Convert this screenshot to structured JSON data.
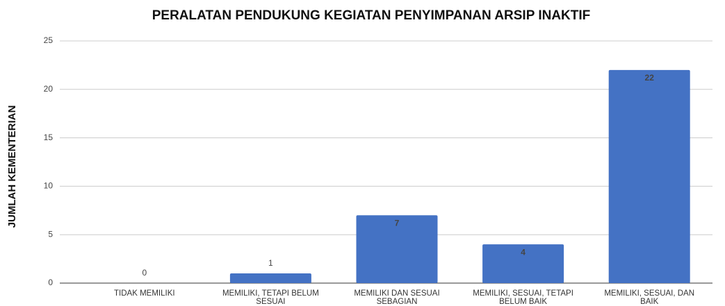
{
  "chart_data": {
    "type": "bar",
    "title": "PERALATAN PENDUKUNG KEGIATAN PENYIMPANAN ARSIP INAKTIF",
    "y_label": "JUMLAH KEMENTERIAN",
    "categories": [
      "TIDAK MEMILIKI",
      "MEMILIKI, TETAPI BELUM SESUAI",
      "MEMILIKI DAN SESUAI SEBAGIAN",
      "MEMILIKI, SESUAI, TETAPI BELUM BAIK",
      "MEMILIKI, SESUAI, DAN BAIK"
    ],
    "values": [
      0,
      1,
      7,
      4,
      22
    ],
    "color": "#4472c4",
    "zero_label_color": "#cc0000",
    "ylim": [
      0,
      25
    ],
    "yticks": [
      0,
      5,
      10,
      15,
      20,
      25
    ],
    "grid": true
  }
}
